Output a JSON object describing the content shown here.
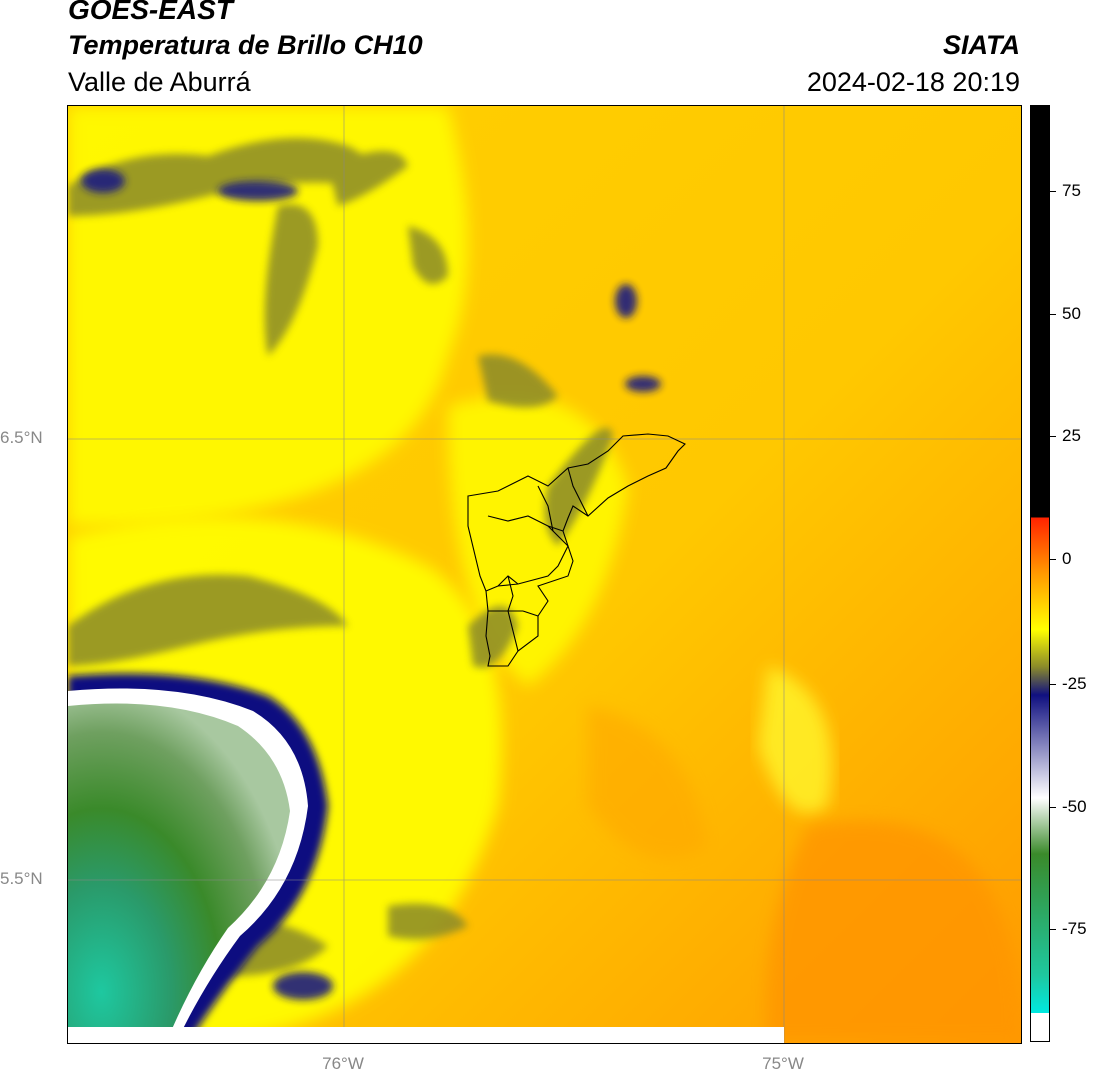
{
  "header": {
    "source": "GOES-EAST",
    "product": "Temperatura de Brillo CH10",
    "region": "Valle de Aburrá",
    "organization": "SIATA",
    "datetime": "2024-02-18 20:19"
  },
  "map": {
    "latitude_labels": [
      "6.5°N",
      "5.5°N"
    ],
    "longitude_labels": [
      "76°W",
      "75°W"
    ]
  },
  "colorbar": {
    "ticks": [
      "75",
      "50",
      "25",
      "0",
      "-25",
      "-50",
      "-75"
    ],
    "colors": {
      "black": "#000000",
      "red": "#ff2200",
      "orange": "#ff9a00",
      "yellow": "#ffff00",
      "olive": "#8a8a2a",
      "navy": "#101080",
      "white": "#ffffff",
      "green": "#3a8a2a",
      "teal": "#1ec8a0",
      "cyan": "#00e8e0"
    }
  }
}
